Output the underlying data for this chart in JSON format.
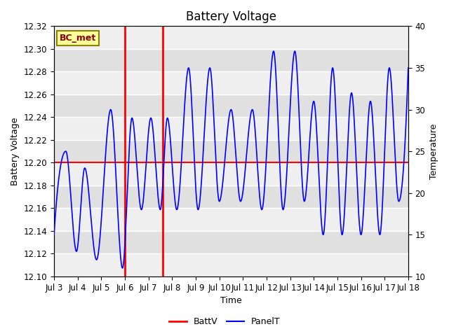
{
  "title": "Battery Voltage",
  "ylabel_left": "Battery Voltage",
  "ylabel_right": "Temperature",
  "xlabel": "Time",
  "ylim_left": [
    12.1,
    12.32
  ],
  "ylim_right": [
    10,
    40
  ],
  "yticks_left": [
    12.1,
    12.12,
    12.14,
    12.16,
    12.18,
    12.2,
    12.22,
    12.24,
    12.26,
    12.28,
    12.3,
    12.32
  ],
  "yticks_right": [
    10,
    15,
    20,
    25,
    30,
    35,
    40
  ],
  "xlim": [
    0,
    15
  ],
  "xtick_positions": [
    0,
    1,
    2,
    3,
    4,
    5,
    6,
    7,
    8,
    9,
    10,
    11,
    12,
    13,
    14,
    15
  ],
  "xtick_labels": [
    "Jul 3",
    "Jul 4",
    "Jul 5",
    "Jul 6",
    "Jul 7",
    "Jul 8",
    "Jul 9",
    "Jul 10",
    "Jul 11",
    "Jul 12",
    "Jul 13",
    "Jul 14",
    "Jul 15",
    "Jul 16",
    "Jul 17",
    "Jul 18"
  ],
  "battv_y": 12.2,
  "vline1_x": 3.0,
  "vline2_x": 4.6,
  "bc_met_label": "BC_met",
  "legend_labels": [
    "BattV",
    "PanelT"
  ],
  "plot_bg": "#e0e0e0",
  "hband_color": "#f0f0f0",
  "title_fontsize": 12,
  "label_fontsize": 9,
  "tick_fontsize": 8.5
}
